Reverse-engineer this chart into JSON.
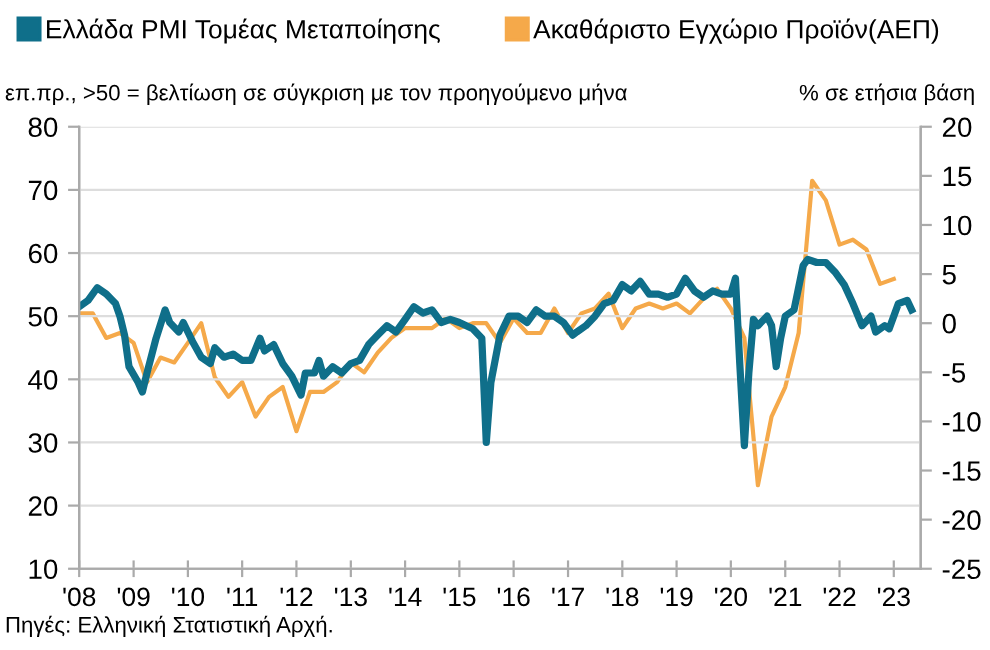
{
  "chart_data": {
    "type": "line",
    "ylabel": "επ.πρ., >50 = βελτίωση σε σύγκριση με τον προηγούμενο μήνα",
    "y2label": "% σε ετήσια βάση",
    "annotations": [
      "Πηγές: Ελληνική Στατιστική Αρχή."
    ],
    "legend": "top",
    "grid": "y",
    "xlim": [
      "2008-01",
      "2023-07"
    ],
    "xticks": [
      {
        "value": "2008-01",
        "label": "'08"
      },
      {
        "value": "2009-01",
        "label": "'09"
      },
      {
        "value": "2010-01",
        "label": "'10"
      },
      {
        "value": "2011-01",
        "label": "'11"
      },
      {
        "value": "2012-01",
        "label": "'12"
      },
      {
        "value": "2013-01",
        "label": "'13"
      },
      {
        "value": "2014-01",
        "label": "'14"
      },
      {
        "value": "2015-01",
        "label": "'15"
      },
      {
        "value": "2016-01",
        "label": "'16"
      },
      {
        "value": "2017-01",
        "label": "'17"
      },
      {
        "value": "2018-01",
        "label": "'18"
      },
      {
        "value": "2019-01",
        "label": "'19"
      },
      {
        "value": "2020-01",
        "label": "'20"
      },
      {
        "value": "2021-01",
        "label": "'21"
      },
      {
        "value": "2022-01",
        "label": "'22"
      },
      {
        "value": "2023-01",
        "label": "'23"
      }
    ],
    "ylim": [
      10,
      80
    ],
    "yticks": [
      10,
      20,
      30,
      40,
      50,
      60,
      70,
      80
    ],
    "y2lim": [
      -25,
      20
    ],
    "y2ticks": [
      -25,
      -20,
      -15,
      -10,
      -5,
      0,
      5,
      10,
      15,
      20
    ],
    "series": [
      {
        "name": "Ελλάδα PMI Τομέας Μεταποίησης",
        "color": "#0f6f8a",
        "x": [
          "2008-01",
          "2008-03",
          "2008-05",
          "2008-07",
          "2008-09",
          "2008-10",
          "2008-11",
          "2008-12",
          "2009-02",
          "2009-03",
          "2009-04",
          "2009-06",
          "2009-08",
          "2009-09",
          "2009-11",
          "2009-12",
          "2010-02",
          "2010-04",
          "2010-06",
          "2010-07",
          "2010-09",
          "2010-11",
          "2011-01",
          "2011-03",
          "2011-05",
          "2011-06",
          "2011-08",
          "2011-10",
          "2011-12",
          "2012-02",
          "2012-03",
          "2012-05",
          "2012-06",
          "2012-07",
          "2012-09",
          "2012-11",
          "2013-01",
          "2013-03",
          "2013-05",
          "2013-07",
          "2013-09",
          "2013-11",
          "2014-01",
          "2014-03",
          "2014-05",
          "2014-07",
          "2014-09",
          "2014-11",
          "2015-01",
          "2015-04",
          "2015-06",
          "2015-07",
          "2015-08",
          "2015-10",
          "2015-12",
          "2016-02",
          "2016-04",
          "2016-06",
          "2016-08",
          "2016-10",
          "2016-12",
          "2017-02",
          "2017-03",
          "2017-05",
          "2017-07",
          "2017-09",
          "2017-11",
          "2018-01",
          "2018-03",
          "2018-05",
          "2018-07",
          "2018-09",
          "2018-11",
          "2019-01",
          "2019-03",
          "2019-05",
          "2019-07",
          "2019-09",
          "2019-11",
          "2020-01",
          "2020-02",
          "2020-03",
          "2020-04",
          "2020-05",
          "2020-06",
          "2020-07",
          "2020-09",
          "2020-10",
          "2020-11",
          "2020-12",
          "2021-01",
          "2021-03",
          "2021-05",
          "2021-06",
          "2021-08",
          "2021-10",
          "2021-12",
          "2022-02",
          "2022-04",
          "2022-06",
          "2022-08",
          "2022-09",
          "2022-11",
          "2022-12",
          "2023-02",
          "2023-04",
          "2023-05"
        ],
        "values": [
          51.5,
          52.5,
          54.5,
          53.5,
          52,
          50,
          47,
          42,
          39.5,
          38,
          41,
          46.5,
          51,
          49,
          47.5,
          49,
          46,
          43.5,
          42.5,
          45,
          43.5,
          44,
          43,
          43,
          46.5,
          44.5,
          45.5,
          42.5,
          40.5,
          37.5,
          41,
          41,
          43,
          40.5,
          42,
          41,
          42.5,
          43,
          45.5,
          47,
          48.5,
          47.5,
          49.5,
          51.5,
          50.5,
          51,
          49,
          49.5,
          49,
          48,
          46.5,
          30,
          39.5,
          47,
          50,
          50,
          49,
          51,
          50,
          50,
          49,
          47,
          47.5,
          48.5,
          50,
          52,
          52.5,
          55,
          54,
          55.5,
          53.5,
          53.5,
          53,
          53.5,
          56,
          54,
          53,
          54,
          53.5,
          53.5,
          56,
          42.5,
          29.5,
          41,
          49.5,
          48.5,
          50,
          48.5,
          42,
          46.5,
          50,
          51,
          58,
          59,
          58.5,
          58.5,
          57,
          55,
          52,
          48.5,
          50,
          47.5,
          48.5,
          48,
          52,
          52.5,
          51
        ]
      },
      {
        "name": "Ακαθάριστο Εγχώριο Προϊόν(ΑΕΠ)",
        "color": "#f5a94a",
        "axis": "y2",
        "x": [
          "2008-01",
          "2008-04",
          "2008-07",
          "2008-10",
          "2009-01",
          "2009-04",
          "2009-07",
          "2009-10",
          "2010-01",
          "2010-04",
          "2010-07",
          "2010-10",
          "2011-01",
          "2011-04",
          "2011-07",
          "2011-10",
          "2012-01",
          "2012-04",
          "2012-07",
          "2012-10",
          "2013-01",
          "2013-04",
          "2013-07",
          "2013-10",
          "2014-01",
          "2014-04",
          "2014-07",
          "2014-10",
          "2015-01",
          "2015-04",
          "2015-07",
          "2015-10",
          "2016-01",
          "2016-04",
          "2016-07",
          "2016-10",
          "2017-01",
          "2017-04",
          "2017-07",
          "2017-10",
          "2018-01",
          "2018-04",
          "2018-07",
          "2018-10",
          "2019-01",
          "2019-04",
          "2019-07",
          "2019-10",
          "2020-01",
          "2020-04",
          "2020-07",
          "2020-10",
          "2021-01",
          "2021-04",
          "2021-07",
          "2021-10",
          "2022-01",
          "2022-04",
          "2022-07",
          "2022-10",
          "2023-01"
        ],
        "values": [
          1,
          1,
          -1.5,
          -1,
          -2,
          -6,
          -3.5,
          -4,
          -2,
          0,
          -5.5,
          -7.5,
          -6,
          -9.5,
          -7.5,
          -6.5,
          -11,
          -7,
          -7,
          -6,
          -4,
          -5,
          -3,
          -1.5,
          -0.5,
          -0.5,
          -0.5,
          0.5,
          -0.5,
          0,
          0,
          -2,
          0.5,
          -1,
          -1,
          1.5,
          -1,
          1,
          1.5,
          3,
          -0.5,
          1.5,
          2,
          1.5,
          2,
          1,
          2.5,
          3.5,
          1.5,
          -1.5,
          -16.5,
          -9.5,
          -6.5,
          -1,
          14.5,
          12.5,
          8,
          8.5,
          7.5,
          4,
          4.5
        ]
      }
    ]
  }
}
